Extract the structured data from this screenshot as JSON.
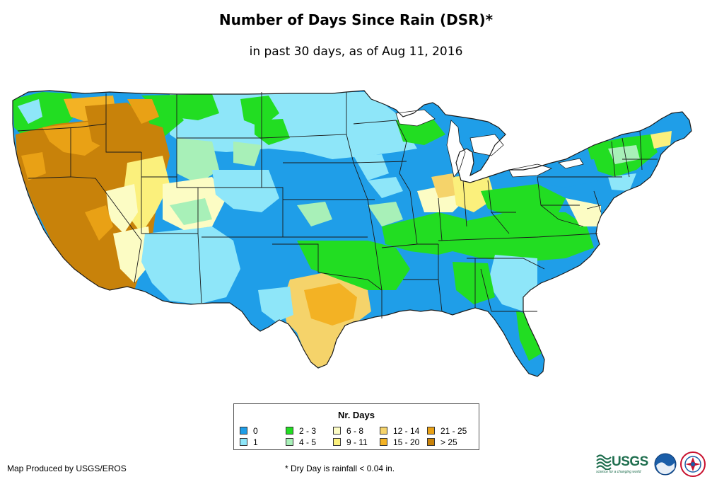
{
  "title": "Number of Days Since Rain (DSR)*",
  "subtitle": "in past 30 days, as of Aug 11, 2016",
  "legend": {
    "title": "Nr. Days",
    "items": [
      {
        "label": "0",
        "color": "#1f9ee8"
      },
      {
        "label": "1",
        "color": "#8ee6f9"
      },
      {
        "label": "2 - 3",
        "color": "#22dd22"
      },
      {
        "label": "4 - 5",
        "color": "#a8f0b8"
      },
      {
        "label": "6 - 8",
        "color": "#fcfcc4"
      },
      {
        "label": "9 - 11",
        "color": "#fbf07c"
      },
      {
        "label": "12 - 14",
        "color": "#f5d36a"
      },
      {
        "label": "15 - 20",
        "color": "#f3b224"
      },
      {
        "label": "21 - 25",
        "color": "#e9a115"
      },
      {
        "label": "> 25",
        "color": "#c8820a"
      }
    ]
  },
  "credit": "Map Produced by USGS/EROS",
  "footnote": "* Dry Day is rainfall < 0.04 in.",
  "logos": {
    "usgs": "USGS",
    "usgs_tagline": "science for a changing world",
    "noaa": "noaa-logo",
    "nws": "nws-logo"
  },
  "colors": {
    "state_border": "#1a1a1a",
    "background": "#ffffff"
  }
}
